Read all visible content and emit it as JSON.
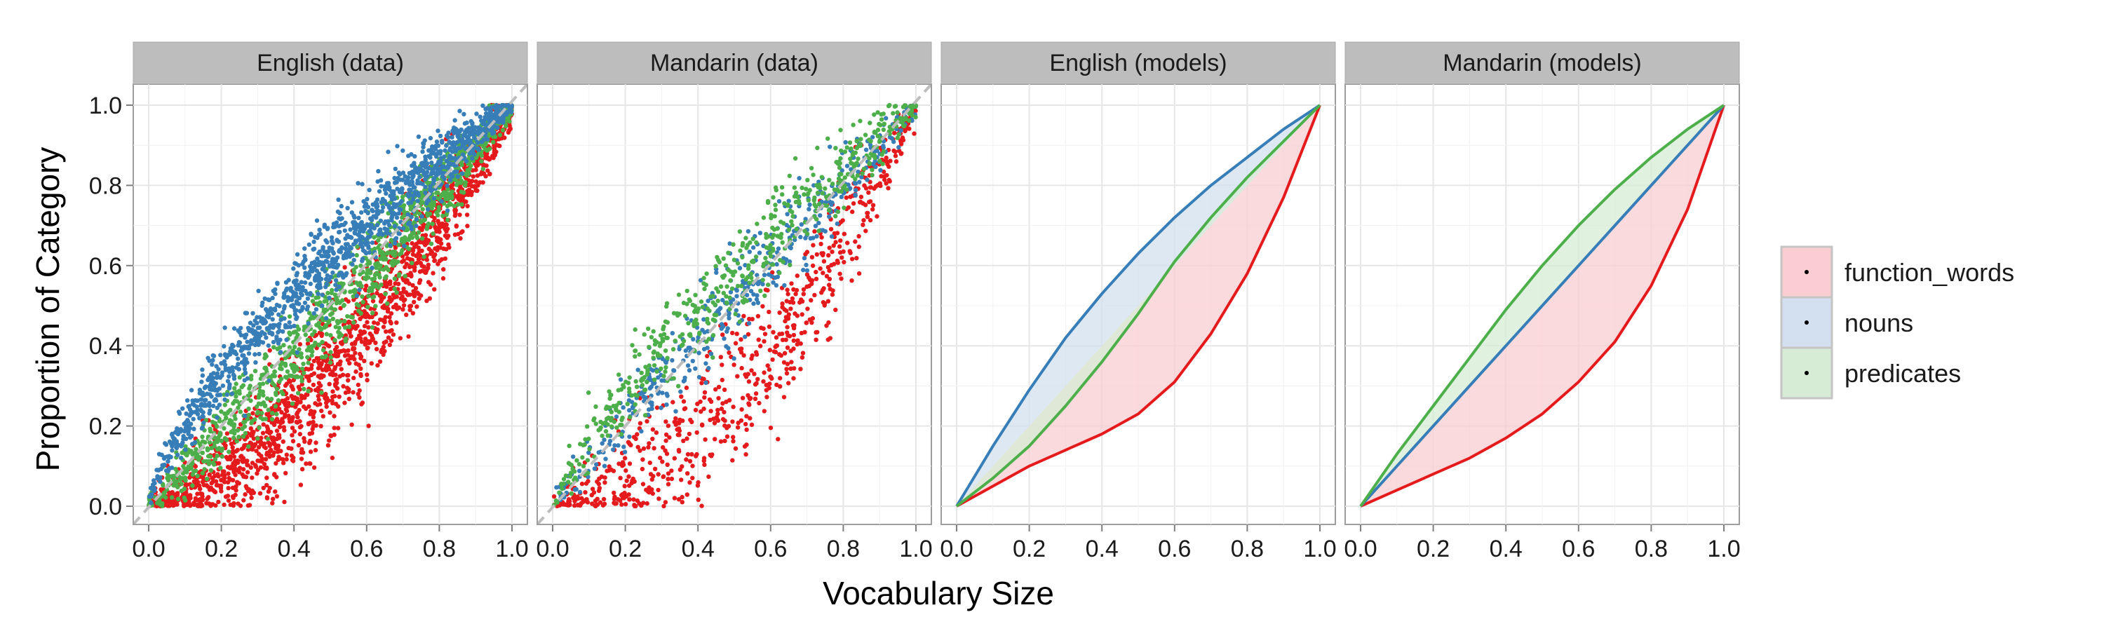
{
  "chart_data": {
    "type": "scatter",
    "xlabel": "Vocabulary Size",
    "ylabel": "Proportion of Category",
    "xlim": [
      0,
      1
    ],
    "ylim": [
      0,
      1
    ],
    "x_ticks": [
      "0.0",
      "0.2",
      "0.4",
      "0.6",
      "0.8",
      "1.0"
    ],
    "y_ticks": [
      "0.0",
      "0.2",
      "0.4",
      "0.6",
      "0.8",
      "1.0"
    ],
    "grid": true,
    "legend_position": "right",
    "legend": [
      {
        "label": "function_words",
        "color": "#e41a1c",
        "fill": "#f9cdd2"
      },
      {
        "label": "nouns",
        "color": "#377eb8",
        "fill": "#d2e0ef"
      },
      {
        "label": "predicates",
        "color": "#4daf4a",
        "fill": "#d6ecd4"
      }
    ],
    "panels": [
      {
        "title": "English (data)",
        "kind": "points",
        "diagonal": true,
        "groups": [
          {
            "label": "function_words",
            "n": 1700,
            "exponent": 1.55,
            "spread": 0.09
          },
          {
            "label": "predicates",
            "n": 1100,
            "exponent": 1.05,
            "spread": 0.06
          },
          {
            "label": "nouns",
            "n": 1300,
            "exponent": 0.7,
            "spread": 0.055
          }
        ]
      },
      {
        "title": "Mandarin (data)",
        "kind": "points",
        "diagonal": true,
        "groups": [
          {
            "label": "function_words",
            "n": 700,
            "exponent": 1.8,
            "spread": 0.1
          },
          {
            "label": "nouns",
            "n": 450,
            "exponent": 0.95,
            "spread": 0.06
          },
          {
            "label": "predicates",
            "n": 550,
            "exponent": 0.8,
            "spread": 0.065
          }
        ]
      },
      {
        "title": "English (models)",
        "kind": "curves",
        "diagonal": false,
        "curves": [
          {
            "label": "function_words",
            "points": [
              [
                0,
                0
              ],
              [
                0.1,
                0.05
              ],
              [
                0.2,
                0.1
              ],
              [
                0.3,
                0.14
              ],
              [
                0.4,
                0.18
              ],
              [
                0.5,
                0.23
              ],
              [
                0.6,
                0.31
              ],
              [
                0.7,
                0.43
              ],
              [
                0.8,
                0.58
              ],
              [
                0.9,
                0.77
              ],
              [
                1,
                1
              ]
            ]
          },
          {
            "label": "nouns",
            "points": [
              [
                0,
                0
              ],
              [
                0.1,
                0.15
              ],
              [
                0.2,
                0.29
              ],
              [
                0.3,
                0.42
              ],
              [
                0.4,
                0.53
              ],
              [
                0.5,
                0.63
              ],
              [
                0.6,
                0.72
              ],
              [
                0.7,
                0.8
              ],
              [
                0.8,
                0.87
              ],
              [
                0.9,
                0.94
              ],
              [
                1,
                1
              ]
            ]
          },
          {
            "label": "predicates",
            "points": [
              [
                0,
                0
              ],
              [
                0.1,
                0.07
              ],
              [
                0.2,
                0.15
              ],
              [
                0.3,
                0.25
              ],
              [
                0.4,
                0.36
              ],
              [
                0.5,
                0.48
              ],
              [
                0.6,
                0.61
              ],
              [
                0.7,
                0.72
              ],
              [
                0.8,
                0.82
              ],
              [
                0.9,
                0.91
              ],
              [
                1,
                1
              ]
            ]
          }
        ]
      },
      {
        "title": "Mandarin (models)",
        "kind": "curves",
        "diagonal": false,
        "curves": [
          {
            "label": "function_words",
            "points": [
              [
                0,
                0
              ],
              [
                0.1,
                0.04
              ],
              [
                0.2,
                0.08
              ],
              [
                0.3,
                0.12
              ],
              [
                0.4,
                0.17
              ],
              [
                0.5,
                0.23
              ],
              [
                0.6,
                0.31
              ],
              [
                0.7,
                0.41
              ],
              [
                0.8,
                0.55
              ],
              [
                0.9,
                0.74
              ],
              [
                1,
                1
              ]
            ]
          },
          {
            "label": "nouns",
            "points": [
              [
                0,
                0
              ],
              [
                0.1,
                0.1
              ],
              [
                0.2,
                0.2
              ],
              [
                0.3,
                0.3
              ],
              [
                0.4,
                0.4
              ],
              [
                0.5,
                0.5
              ],
              [
                0.6,
                0.6
              ],
              [
                0.7,
                0.7
              ],
              [
                0.8,
                0.8
              ],
              [
                0.9,
                0.9
              ],
              [
                1,
                1
              ]
            ]
          },
          {
            "label": "predicates",
            "points": [
              [
                0,
                0
              ],
              [
                0.1,
                0.13
              ],
              [
                0.2,
                0.25
              ],
              [
                0.3,
                0.37
              ],
              [
                0.4,
                0.49
              ],
              [
                0.5,
                0.6
              ],
              [
                0.6,
                0.7
              ],
              [
                0.7,
                0.79
              ],
              [
                0.8,
                0.87
              ],
              [
                0.9,
                0.94
              ],
              [
                1,
                1
              ]
            ]
          }
        ]
      }
    ]
  }
}
